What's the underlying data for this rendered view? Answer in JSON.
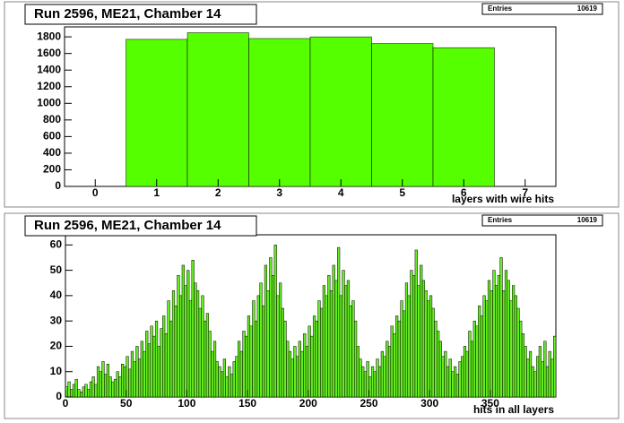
{
  "chart_data": [
    {
      "type": "histogram",
      "title": "Run 2596, ME21, Chamber 14",
      "stats_label": "Entries",
      "stats_value": 10619,
      "xlabel": "layers with wire hits",
      "color": "#55ff00",
      "bins": [
        0.5,
        1.5,
        2.5,
        3.5,
        4.5,
        5.5,
        6.5
      ],
      "values": [
        1770,
        1850,
        1780,
        1800,
        1720,
        1670
      ],
      "xlim": [
        -0.5,
        7.5
      ],
      "ylim": [
        0,
        1920
      ],
      "xticks": [
        0,
        1,
        2,
        3,
        4,
        5,
        6,
        7
      ],
      "yticks": [
        0,
        200,
        400,
        600,
        800,
        1000,
        1200,
        1400,
        1600,
        1800
      ]
    },
    {
      "type": "histogram",
      "title": "Run 2596, ME21, Chamber 14",
      "stats_label": "Entries",
      "stats_value": 10619,
      "xlabel": "hits in all layers",
      "color": "#66ee22",
      "bins": [
        0,
        2,
        4,
        6,
        8,
        10,
        12,
        14,
        16,
        18,
        20,
        22,
        24,
        26,
        28,
        30,
        32,
        34,
        36,
        38,
        40,
        42,
        44,
        46,
        48,
        50,
        52,
        54,
        56,
        58,
        60,
        62,
        64,
        66,
        68,
        70,
        72,
        74,
        76,
        78,
        80,
        82,
        84,
        86,
        88,
        90,
        92,
        94,
        96,
        98,
        100,
        102,
        104,
        106,
        108,
        110,
        112,
        114,
        116,
        118,
        120,
        122,
        124,
        126,
        128,
        130,
        132,
        134,
        136,
        138,
        140,
        142,
        144,
        146,
        148,
        150,
        152,
        154,
        156,
        158,
        160,
        162,
        164,
        166,
        168,
        170,
        172,
        174,
        176,
        178,
        180,
        182,
        184,
        186,
        188,
        190,
        192,
        194,
        196,
        198,
        200,
        202,
        204,
        206,
        208,
        210,
        212,
        214,
        216,
        218,
        220,
        222,
        224,
        226,
        228,
        230,
        232,
        234,
        236,
        238,
        240,
        242,
        244,
        246,
        248,
        250,
        252,
        254,
        256,
        258,
        260,
        262,
        264,
        266,
        268,
        270,
        272,
        274,
        276,
        278,
        280,
        282,
        284,
        286,
        288,
        290,
        292,
        294,
        296,
        298,
        300,
        302,
        304,
        306,
        308,
        310,
        312,
        314,
        316,
        318,
        320,
        322,
        324,
        326,
        328,
        330,
        332,
        334,
        336,
        338,
        340,
        342,
        344,
        346,
        348,
        350,
        352,
        354,
        356,
        358,
        360,
        362,
        364,
        366,
        368,
        370,
        372,
        374,
        376,
        378,
        380,
        382,
        384,
        386,
        388,
        390,
        392,
        394,
        396,
        398,
        400,
        402,
        404
      ],
      "values": [
        4,
        6,
        3,
        5,
        7,
        3,
        2,
        4,
        5,
        3,
        6,
        8,
        5,
        12,
        10,
        14,
        9,
        13,
        8,
        6,
        7,
        10,
        8,
        13,
        12,
        16,
        11,
        18,
        14,
        20,
        15,
        22,
        18,
        26,
        21,
        28,
        24,
        30,
        20,
        27,
        32,
        25,
        38,
        30,
        42,
        36,
        48,
        40,
        52,
        44,
        50,
        38,
        54,
        45,
        42,
        35,
        40,
        30,
        33,
        26,
        18,
        22,
        14,
        12,
        10,
        15,
        8,
        12,
        9,
        14,
        16,
        22,
        18,
        26,
        24,
        32,
        28,
        38,
        30,
        40,
        45,
        36,
        52,
        42,
        55,
        48,
        60,
        40,
        45,
        35,
        30,
        22,
        18,
        15,
        20,
        16,
        22,
        18,
        25,
        20,
        28,
        24,
        32,
        30,
        38,
        35,
        44,
        40,
        48,
        42,
        52,
        46,
        59,
        40,
        50,
        44,
        46,
        36,
        38,
        30,
        20,
        15,
        12,
        10,
        14,
        8,
        12,
        10,
        15,
        12,
        18,
        16,
        22,
        20,
        28,
        25,
        32,
        30,
        38,
        34,
        45,
        40,
        50,
        48,
        58,
        44,
        52,
        46,
        42,
        38,
        40,
        35,
        30,
        26,
        22,
        16,
        18,
        12,
        15,
        10,
        12,
        9,
        14,
        16,
        20,
        18,
        26,
        22,
        30,
        28,
        36,
        32,
        40,
        38,
        46,
        42,
        50,
        44,
        48,
        55,
        42,
        50,
        46,
        38,
        44,
        40,
        35,
        30,
        25,
        20,
        15,
        18,
        12,
        10,
        16,
        20,
        14,
        22,
        12,
        18,
        15,
        24
      ],
      "xlim": [
        0,
        404
      ],
      "ylim": [
        0,
        64
      ],
      "xticks": [
        0,
        50,
        100,
        150,
        200,
        250,
        300,
        350
      ],
      "yticks": [
        0,
        10,
        20,
        30,
        40,
        50,
        60
      ]
    }
  ]
}
